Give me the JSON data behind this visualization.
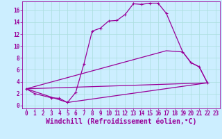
{
  "background_color": "#cceeff",
  "line_color": "#990099",
  "xlabel": "Windchill (Refroidissement éolien,°C)",
  "xlim": [
    -0.5,
    23.5
  ],
  "ylim": [
    -0.5,
    17.5
  ],
  "xticks": [
    0,
    1,
    2,
    3,
    4,
    5,
    6,
    7,
    8,
    9,
    10,
    11,
    12,
    13,
    14,
    15,
    16,
    17,
    18,
    19,
    20,
    21,
    22,
    23
  ],
  "yticks": [
    0,
    2,
    4,
    6,
    8,
    10,
    12,
    14,
    16
  ],
  "grid_color": "#aadddd",
  "curve1_x": [
    0,
    1,
    3,
    4,
    5,
    6,
    7,
    8,
    9,
    10,
    11,
    12,
    13,
    14,
    15,
    16,
    17,
    19,
    20,
    21,
    22
  ],
  "curve1_y": [
    2.8,
    2.0,
    1.3,
    1.2,
    0.5,
    2.2,
    7.0,
    12.5,
    13.0,
    14.2,
    14.3,
    15.3,
    17.1,
    17.0,
    17.2,
    17.2,
    15.5,
    9.0,
    7.2,
    6.5,
    3.8
  ],
  "curve2_x": [
    0,
    17,
    19,
    20,
    21,
    22
  ],
  "curve2_y": [
    2.8,
    9.2,
    9.0,
    7.2,
    6.5,
    3.8
  ],
  "curve3_x": [
    0,
    22
  ],
  "curve3_y": [
    2.8,
    3.8
  ],
  "curve4_x": [
    0,
    5,
    22
  ],
  "curve4_y": [
    2.8,
    0.5,
    3.8
  ],
  "tick_fontsize": 5.5,
  "xlabel_fontsize": 7
}
